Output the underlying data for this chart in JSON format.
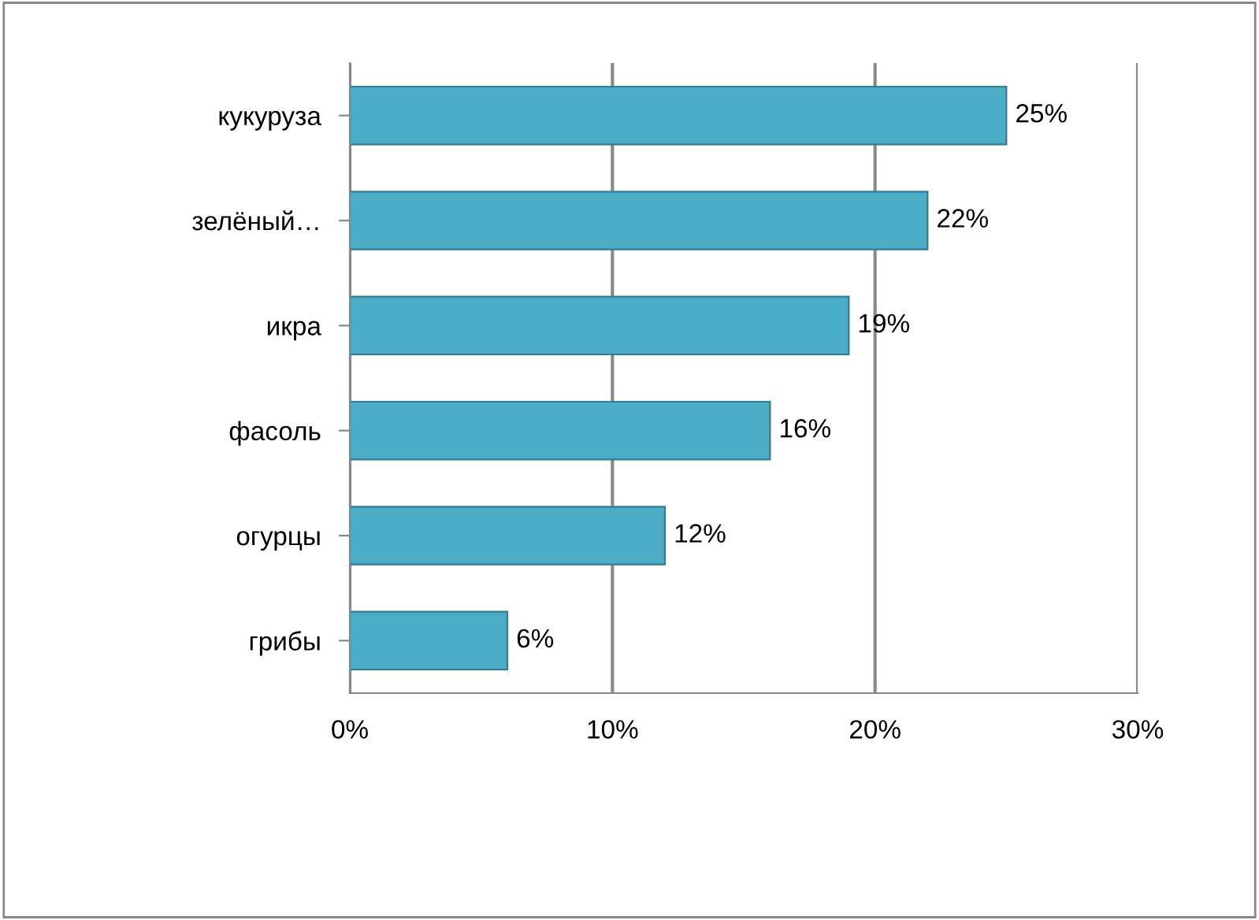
{
  "chart_data": {
    "type": "bar",
    "orientation": "horizontal",
    "categories": [
      "кукуруза",
      "зелёный…",
      "икра",
      "фасоль",
      "огурцы",
      "грибы"
    ],
    "values": [
      25,
      22,
      19,
      16,
      12,
      6
    ],
    "value_labels": [
      "25%",
      "22%",
      "19%",
      "16%",
      "12%",
      "6%"
    ],
    "color": "#4bacc6",
    "xlim": [
      0,
      30
    ],
    "xticks": [
      {
        "value": 0,
        "label": "0%"
      },
      {
        "value": 10,
        "label": "10%"
      },
      {
        "value": 20,
        "label": "20%"
      },
      {
        "value": 30,
        "label": "30%"
      }
    ],
    "grid": "x"
  }
}
